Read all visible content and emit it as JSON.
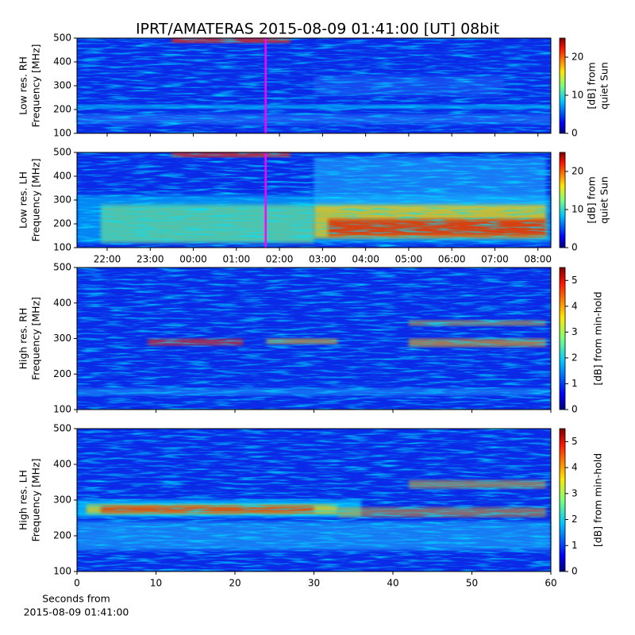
{
  "chart_data": [
    {
      "type": "heatmap",
      "title": "IPRT/AMATERAS 2015-08-09 01:41:00 [UT]   08bit",
      "ylabel": [
        "Low res. RH",
        "Frequency [MHz]"
      ],
      "ylim": [
        100,
        500
      ],
      "yticks": [
        100,
        200,
        300,
        400,
        500
      ],
      "xlim": [
        21.3,
        32.3
      ],
      "marker_x": 25.68,
      "marker_color": "#ff00ff",
      "colormap": "jet",
      "colorbar": {
        "label": [
          "[dB] from",
          "quiet Sun"
        ],
        "lim": [
          0,
          25
        ],
        "ticks": [
          0,
          10,
          20
        ]
      }
    },
    {
      "type": "heatmap",
      "ylabel": [
        "Low res. LH",
        "Frequency [MHz]"
      ],
      "ylim": [
        100,
        500
      ],
      "yticks": [
        100,
        200,
        300,
        400,
        500
      ],
      "xlim": [
        21.3,
        32.3
      ],
      "xticks": [
        {
          "value": 22,
          "label": "22:00"
        },
        {
          "value": 23,
          "label": "23:00"
        },
        {
          "value": 24,
          "label": "00:00"
        },
        {
          "value": 25,
          "label": "01:00"
        },
        {
          "value": 26,
          "label": "02:00"
        },
        {
          "value": 27,
          "label": "03:00"
        },
        {
          "value": 28,
          "label": "04:00"
        },
        {
          "value": 29,
          "label": "05:00"
        },
        {
          "value": 30,
          "label": "06:00"
        },
        {
          "value": 31,
          "label": "07:00"
        },
        {
          "value": 32,
          "label": "08:00"
        }
      ],
      "marker_x": 25.68,
      "marker_color": "#ff00ff",
      "colormap": "jet",
      "colorbar": {
        "label": [
          "[dB] from",
          "quiet Sun"
        ],
        "lim": [
          0,
          25
        ],
        "ticks": [
          0,
          10,
          20
        ]
      }
    },
    {
      "type": "heatmap",
      "ylabel": [
        "High res. RH",
        "Frequency [MHz]"
      ],
      "ylim": [
        100,
        500
      ],
      "yticks": [
        100,
        200,
        300,
        400,
        500
      ],
      "xlim": [
        0,
        60
      ],
      "colormap": "jet",
      "colorbar": {
        "label": [
          "[dB] from min-hold"
        ],
        "lim": [
          0,
          5.5
        ],
        "ticks": [
          0,
          1,
          2,
          3,
          4,
          5
        ]
      }
    },
    {
      "type": "heatmap",
      "ylabel": [
        "High res. LH",
        "Frequency [MHz]"
      ],
      "ylim": [
        100,
        500
      ],
      "yticks": [
        100,
        200,
        300,
        400,
        500
      ],
      "xlim": [
        0,
        60
      ],
      "xticks": [
        0,
        10,
        20,
        30,
        40,
        50,
        60
      ],
      "xlabel": [
        "Seconds from",
        "2015-08-09 01:41:00"
      ],
      "colormap": "jet",
      "colorbar": {
        "label": [
          "[dB] from min-hold"
        ],
        "lim": [
          0,
          5.5
        ],
        "ticks": [
          0,
          1,
          2,
          3,
          4,
          5
        ]
      }
    }
  ]
}
